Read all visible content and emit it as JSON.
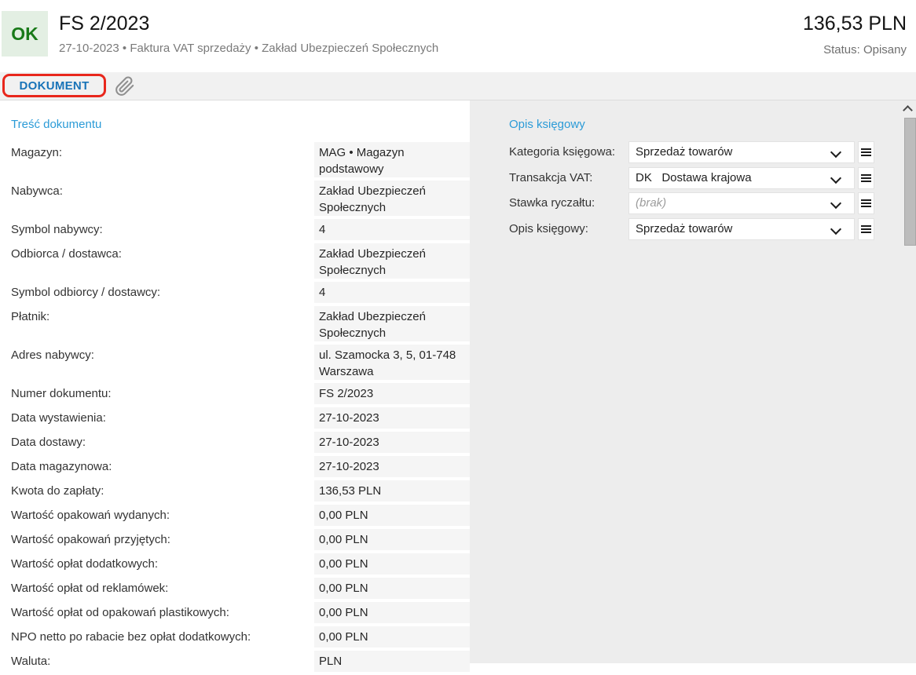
{
  "header": {
    "badge": "OK",
    "title": "FS 2/2023",
    "subtitle": "27-10-2023 • Faktura VAT sprzedaży • Zakład Ubezpieczeń Społecznych",
    "amount": "136,53 PLN",
    "status": "Status: Opisany"
  },
  "tabs": {
    "dokument": "DOKUMENT"
  },
  "icons": {
    "attachment": "paperclip-icon",
    "dropdown": "chevron-down-icon",
    "row_menu": "hamburger-icon",
    "scroll_up": "chevron-up-icon"
  },
  "colors": {
    "accent_blue": "#2b9bd7",
    "tab_blue": "#1873b8",
    "highlight_red": "#e8271c",
    "badge_green": "#197a19",
    "badge_bg": "#e3efe3",
    "value_cell_bg": "#f5f5f5",
    "page_bg": "#ededed"
  },
  "left_section": {
    "title": "Treść dokumentu",
    "rows": [
      {
        "label": "Magazyn:",
        "value": "MAG • Magazyn podstawowy",
        "lines": 2
      },
      {
        "label": "Nabywca:",
        "value": "Zakład Ubezpieczeń Społecznych",
        "lines": 2
      },
      {
        "label": "Symbol nabywcy:",
        "value": "4",
        "lines": 1
      },
      {
        "label": "Odbiorca / dostawca:",
        "value": "Zakład Ubezpieczeń Społecznych",
        "lines": 2
      },
      {
        "label": "Symbol odbiorcy / dostawcy:",
        "value": "4",
        "lines": 1
      },
      {
        "label": "Płatnik:",
        "value": "Zakład Ubezpieczeń Społecznych",
        "lines": 2
      },
      {
        "label": "Adres nabywcy:",
        "value": "ul. Szamocka 3, 5, 01-748 Warszawa",
        "lines": 2
      },
      {
        "label": "Numer dokumentu:",
        "value": "FS 2/2023",
        "lines": 1
      },
      {
        "label": "Data wystawienia:",
        "value": "27-10-2023",
        "lines": 1
      },
      {
        "label": "Data dostawy:",
        "value": "27-10-2023",
        "lines": 1
      },
      {
        "label": "Data magazynowa:",
        "value": "27-10-2023",
        "lines": 1
      },
      {
        "label": "Kwota do zapłaty:",
        "value": "136,53 PLN",
        "lines": 1
      },
      {
        "label": "Wartość opakowań wydanych:",
        "value": "0,00 PLN",
        "lines": 1
      },
      {
        "label": "Wartość opakowań przyjętych:",
        "value": "0,00 PLN",
        "lines": 1
      },
      {
        "label": "Wartość opłat dodatkowych:",
        "value": "0,00 PLN",
        "lines": 1
      },
      {
        "label": "Wartość opłat od reklamówek:",
        "value": "0,00 PLN",
        "lines": 1
      },
      {
        "label": "Wartość opłat od opakowań plastikowych:",
        "value": "0,00 PLN",
        "lines": 1
      },
      {
        "label": "NPO netto po rabacie bez opłat dodatkowych:",
        "value": "0,00 PLN",
        "lines": 1
      },
      {
        "label": "Waluta:",
        "value": "PLN",
        "lines": 1
      }
    ]
  },
  "right_section": {
    "title": "Opis księgowy",
    "rows": [
      {
        "name": "kategoria-ksiegowa",
        "label": "Kategoria księgowa:",
        "value": "Sprzedaż towarów",
        "placeholder": false
      },
      {
        "name": "transakcja-vat",
        "label": "Transakcja VAT:",
        "value": "DK   Dostawa krajowa",
        "placeholder": false
      },
      {
        "name": "stawka-ryczaltu",
        "label": "Stawka ryczałtu:",
        "value": "(brak)",
        "placeholder": true
      },
      {
        "name": "opis-ksiegowy",
        "label": "Opis księgowy:",
        "value": "Sprzedaż towarów",
        "placeholder": false
      }
    ]
  }
}
